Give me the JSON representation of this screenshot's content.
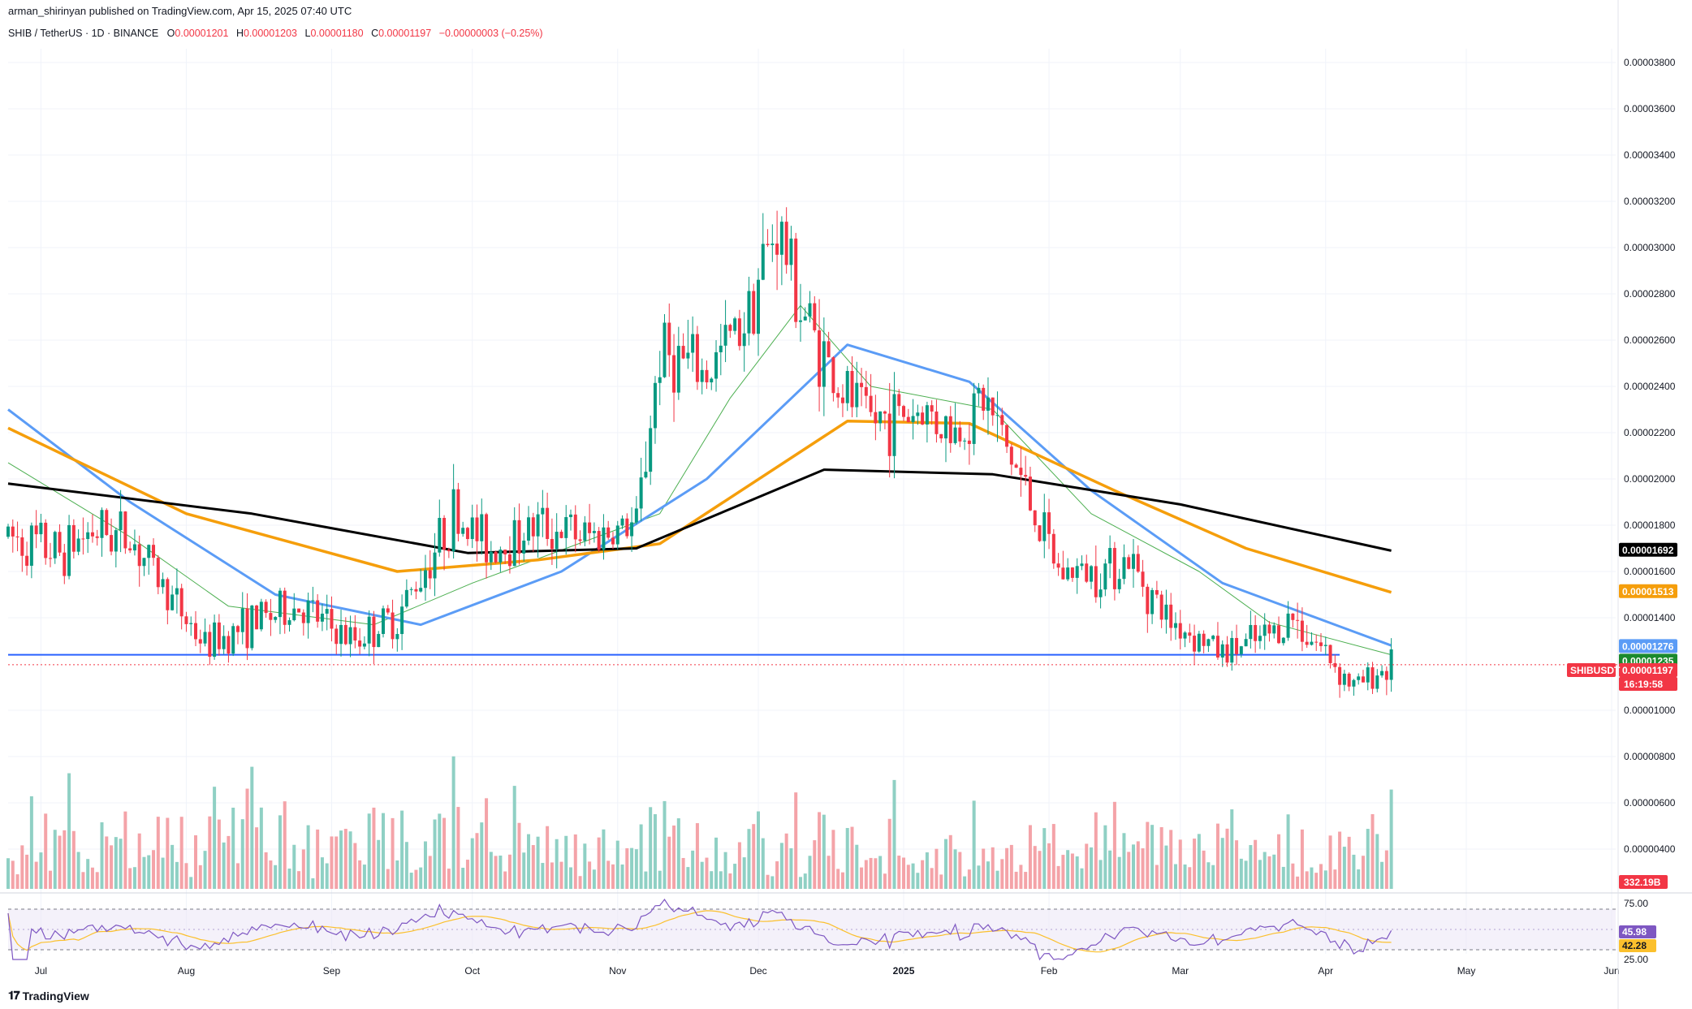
{
  "header": {
    "publisher": "arman_shirinyan published on TradingView.com, Apr 15, 2025 07:40 UTC"
  },
  "symbol": {
    "name": "SHIB / TetherUS · 1D · BINANCE",
    "o_label": "O",
    "o_value": "0.00001201",
    "h_label": "H",
    "h_value": "0.00001203",
    "l_label": "L",
    "l_value": "0.00001180",
    "c_label": "C",
    "c_value": "0.00001197",
    "change": "−0.00000003 (−0.25%)"
  },
  "footer": {
    "brand": "TradingView",
    "logo": "tradingview-logo-icon"
  },
  "colors": {
    "up": "#089981",
    "down": "#f23645",
    "ma20": "#4caf50",
    "ma50": "#5b9cf6",
    "ma100": "#f59e0b",
    "ma200": "#000000",
    "support": "#2962ff",
    "rsi": "#7e57c2",
    "rsi_ma": "#fbc02d"
  },
  "chart_data": {
    "type": "candlestick",
    "symbol": "SHIBUSDT",
    "price_axis_ticks": [
      "0.00003800",
      "0.00003600",
      "0.00003400",
      "0.00003200",
      "0.00003000",
      "0.00002800",
      "0.00002600",
      "0.00002400",
      "0.00002200",
      "0.00002000",
      "0.00001800",
      "0.00001600",
      "0.00001400",
      "0.00001000",
      "0.00000800",
      "0.00000600",
      "0.00000400"
    ],
    "time_axis_labels": [
      "Jul",
      "Aug",
      "Sep",
      "Oct",
      "Nov",
      "Dec",
      "2025",
      "Feb",
      "Mar",
      "Apr",
      "May",
      "Jun"
    ],
    "price_tags": [
      {
        "value": "0.00001692",
        "series": "MA 200",
        "color": "#000000",
        "text_color": "#ffffff"
      },
      {
        "value": "0.00001513",
        "series": "MA 100",
        "color": "#f59e0b",
        "text_color": "#ffffff"
      },
      {
        "value": "0.00001276",
        "series": "MA 50",
        "color": "#5b9cf6",
        "text_color": "#ffffff"
      },
      {
        "value": "0.00001235",
        "series": "MA 20",
        "color": "#1b8a2e",
        "text_color": "#ffffff"
      },
      {
        "value": "0.00001197",
        "series": "Last price",
        "color": "#f23645",
        "text_color": "#ffffff"
      }
    ],
    "last_price_symbol_tag": "SHIBUSDT",
    "countdown": "16:19:58",
    "volume_tag": "332.19B",
    "rsi": {
      "upper": "75.00",
      "lower": "25.00",
      "value": "45.98",
      "ma_value": "42.28"
    },
    "support_level": 1.24e-05,
    "anchors": [
      [
        "2024-06-24",
        1.75e-05
      ],
      [
        "2024-07-05",
        1.68e-05
      ],
      [
        "2024-07-12",
        1.78e-05
      ],
      [
        "2024-07-20",
        1.75e-05
      ],
      [
        "2024-07-30",
        1.45e-05
      ],
      [
        "2024-08-05",
        1.28e-05
      ],
      [
        "2024-08-15",
        1.38e-05
      ],
      [
        "2024-08-25",
        1.45e-05
      ],
      [
        "2024-09-05",
        1.3e-05
      ],
      [
        "2024-09-15",
        1.4e-05
      ],
      [
        "2024-09-27",
        1.85e-05
      ],
      [
        "2024-10-05",
        1.7e-05
      ],
      [
        "2024-10-15",
        1.8e-05
      ],
      [
        "2024-10-25",
        1.75e-05
      ],
      [
        "2024-11-05",
        1.8e-05
      ],
      [
        "2024-11-10",
        2.55e-05
      ],
      [
        "2024-11-20",
        2.45e-05
      ],
      [
        "2024-11-28",
        2.7e-05
      ],
      [
        "2024-12-05",
        3.1e-05
      ],
      [
        "2024-12-10",
        2.75e-05
      ],
      [
        "2024-12-18",
        2.4e-05
      ],
      [
        "2024-12-25",
        2.25e-05
      ],
      [
        "2025-01-05",
        2.3e-05
      ],
      [
        "2025-01-12",
        2.2e-05
      ],
      [
        "2025-01-18",
        2.35e-05
      ],
      [
        "2025-01-26",
        2e-05
      ],
      [
        "2025-02-03",
        1.6e-05
      ],
      [
        "2025-02-10",
        1.6e-05
      ],
      [
        "2025-02-18",
        1.65e-05
      ],
      [
        "2025-02-26",
        1.4e-05
      ],
      [
        "2025-03-10",
        1.25e-05
      ],
      [
        "2025-03-18",
        1.3e-05
      ],
      [
        "2025-03-25",
        1.4e-05
      ],
      [
        "2025-04-01",
        1.25e-05
      ],
      [
        "2025-04-07",
        1.1e-05
      ],
      [
        "2025-04-15",
        1.2e-05
      ]
    ],
    "ma200_points": [
      [
        "2024-06-24",
        1.98e-05
      ],
      [
        "2024-08-15",
        1.85e-05
      ],
      [
        "2024-09-30",
        1.68e-05
      ],
      [
        "2024-11-05",
        1.7e-05
      ],
      [
        "2024-12-15",
        2.04e-05
      ],
      [
        "2025-01-20",
        2.02e-05
      ],
      [
        "2025-03-01",
        1.89e-05
      ],
      [
        "2025-04-15",
        1.69e-05
      ]
    ],
    "ma100_points": [
      [
        "2024-06-24",
        2.22e-05
      ],
      [
        "2024-08-01",
        1.85e-05
      ],
      [
        "2024-09-15",
        1.6e-05
      ],
      [
        "2024-10-15",
        1.65e-05
      ],
      [
        "2024-11-10",
        1.72e-05
      ],
      [
        "2024-12-20",
        2.25e-05
      ],
      [
        "2025-01-15",
        2.24e-05
      ],
      [
        "2025-02-15",
        1.95e-05
      ],
      [
        "2025-03-15",
        1.7e-05
      ],
      [
        "2025-04-15",
        1.51e-05
      ]
    ],
    "ma50_points": [
      [
        "2024-06-24",
        2.3e-05
      ],
      [
        "2024-07-20",
        1.9e-05
      ],
      [
        "2024-08-20",
        1.5e-05
      ],
      [
        "2024-09-20",
        1.37e-05
      ],
      [
        "2024-10-20",
        1.6e-05
      ],
      [
        "2024-11-20",
        2e-05
      ],
      [
        "2024-12-20",
        2.58e-05
      ],
      [
        "2025-01-15",
        2.42e-05
      ],
      [
        "2025-02-10",
        1.95e-05
      ],
      [
        "2025-03-10",
        1.55e-05
      ],
      [
        "2025-04-15",
        1.28e-05
      ]
    ],
    "ma20_points": [
      [
        "2024-06-24",
        2.07e-05
      ],
      [
        "2024-07-20",
        1.75e-05
      ],
      [
        "2024-08-10",
        1.45e-05
      ],
      [
        "2024-09-10",
        1.37e-05
      ],
      [
        "2024-10-01",
        1.55e-05
      ],
      [
        "2024-11-10",
        1.85e-05
      ],
      [
        "2024-11-25",
        2.35e-05
      ],
      [
        "2024-12-10",
        2.75e-05
      ],
      [
        "2024-12-25",
        2.4e-05
      ],
      [
        "2025-01-20",
        2.3e-05
      ],
      [
        "2025-02-10",
        1.85e-05
      ],
      [
        "2025-03-05",
        1.6e-05
      ],
      [
        "2025-03-20",
        1.38e-05
      ],
      [
        "2025-04-15",
        1.24e-05
      ]
    ]
  }
}
